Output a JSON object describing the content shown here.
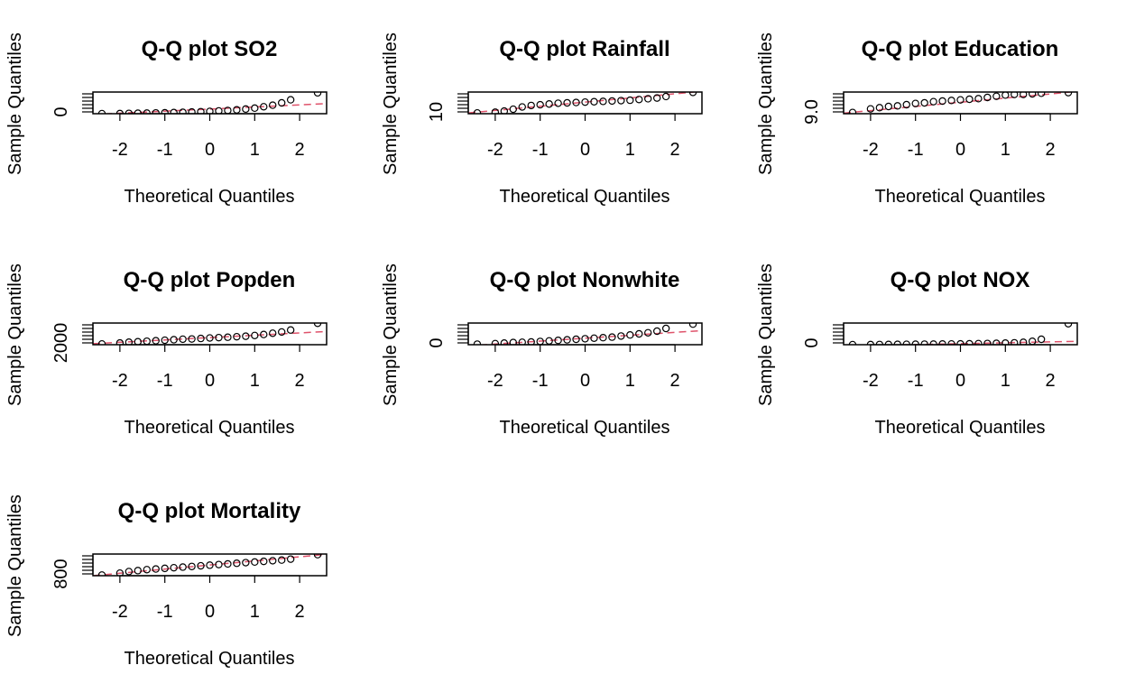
{
  "figure": {
    "background": "#ffffff",
    "point_color": "#000000",
    "line_color": "#df536b"
  },
  "chart_data": [
    {
      "type": "scatter",
      "title": "Q-Q plot SO2",
      "xlabel": "Theoretical Quantiles",
      "ylabel": "Sample Quantiles",
      "xlim": [
        -2.6,
        2.6
      ],
      "ylim": [
        0,
        280
      ],
      "xticks": [
        "-2",
        "-1",
        "0",
        "1",
        "2"
      ],
      "yticks": [
        "0"
      ],
      "x": [
        -2.4,
        -2.0,
        -1.8,
        -1.6,
        -1.4,
        -1.2,
        -1.0,
        -0.8,
        -0.6,
        -0.4,
        -0.2,
        0.0,
        0.2,
        0.4,
        0.6,
        0.8,
        1.0,
        1.2,
        1.4,
        1.6,
        1.8,
        2.4
      ],
      "y": [
        1,
        2,
        4,
        6,
        8,
        10,
        12,
        15,
        18,
        22,
        26,
        30,
        36,
        42,
        50,
        60,
        72,
        90,
        110,
        140,
        180,
        270
      ],
      "line": [
        [
          -2.6,
          -10
        ],
        [
          2.6,
          130
        ]
      ]
    },
    {
      "type": "scatter",
      "title": "Q-Q plot Rainfall",
      "xlabel": "Theoretical Quantiles",
      "ylabel": "Sample Quantiles",
      "xlim": [
        -2.6,
        2.6
      ],
      "ylim": [
        8,
        66
      ],
      "xticks": [
        "-2",
        "-1",
        "0",
        "1",
        "2"
      ],
      "yticks": [
        "10"
      ],
      "x": [
        -2.4,
        -2.0,
        -1.8,
        -1.6,
        -1.4,
        -1.2,
        -1.0,
        -0.8,
        -0.6,
        -0.4,
        -0.2,
        0.0,
        0.2,
        0.4,
        0.6,
        0.8,
        1.0,
        1.2,
        1.4,
        1.6,
        1.8,
        2.4
      ],
      "y": [
        10,
        12,
        15,
        20,
        26,
        30,
        32,
        34,
        36,
        37,
        38,
        39,
        40,
        41,
        42,
        43,
        44,
        46,
        48,
        50,
        54,
        65
      ],
      "line": [
        [
          -2.6,
          10
        ],
        [
          2.6,
          68
        ]
      ]
    },
    {
      "type": "scatter",
      "title": "Q-Q plot Education",
      "xlabel": "Theoretical Quantiles",
      "ylabel": "Sample Quantiles",
      "xlim": [
        -2.6,
        2.6
      ],
      "ylim": [
        8.8,
        12.4
      ],
      "xticks": [
        "-2",
        "-1",
        "0",
        "1",
        "2"
      ],
      "yticks": [
        "9.0"
      ],
      "x": [
        -2.4,
        -2.0,
        -1.8,
        -1.6,
        -1.4,
        -1.2,
        -1.0,
        -0.8,
        -0.6,
        -0.4,
        -0.2,
        0.0,
        0.2,
        0.4,
        0.6,
        0.8,
        1.0,
        1.2,
        1.4,
        1.6,
        1.8,
        2.4
      ],
      "y": [
        9.0,
        9.6,
        9.8,
        10.0,
        10.1,
        10.3,
        10.5,
        10.6,
        10.8,
        10.9,
        11.0,
        11.1,
        11.2,
        11.3,
        11.5,
        11.7,
        11.9,
        12.0,
        12.0,
        12.1,
        12.2,
        12.3
      ],
      "line": [
        [
          -2.6,
          8.9
        ],
        [
          2.6,
          12.5
        ]
      ]
    },
    {
      "type": "scatter",
      "title": "Q-Q plot Popden",
      "xlabel": "Theoretical Quantiles",
      "ylabel": "Sample Quantiles",
      "xlim": [
        -2.6,
        2.6
      ],
      "ylim": [
        1100,
        9800
      ],
      "xticks": [
        "-2",
        "-1",
        "0",
        "1",
        "2"
      ],
      "yticks": [
        "2000"
      ],
      "x": [
        -2.4,
        -2.0,
        -1.8,
        -1.6,
        -1.4,
        -1.2,
        -1.0,
        -0.8,
        -0.6,
        -0.4,
        -0.2,
        0.0,
        0.2,
        0.4,
        0.6,
        0.8,
        1.0,
        1.2,
        1.4,
        1.6,
        1.8,
        2.4
      ],
      "y": [
        1400,
        1800,
        2100,
        2300,
        2500,
        2700,
        2900,
        3100,
        3300,
        3400,
        3600,
        3800,
        3950,
        4100,
        4300,
        4500,
        4800,
        5200,
        5700,
        6200,
        7000,
        9700
      ],
      "line": [
        [
          -2.6,
          1500
        ],
        [
          2.6,
          6400
        ]
      ]
    },
    {
      "type": "scatter",
      "title": "Q-Q plot Nonwhite",
      "xlabel": "Theoretical Quantiles",
      "ylabel": "Sample Quantiles",
      "xlim": [
        -2.6,
        2.6
      ],
      "ylim": [
        0,
        40
      ],
      "xticks": [
        "-2",
        "-1",
        "0",
        "1",
        "2"
      ],
      "yticks": [
        "0"
      ],
      "x": [
        -2.4,
        -2.0,
        -1.8,
        -1.6,
        -1.4,
        -1.2,
        -1.0,
        -0.8,
        -0.6,
        -0.4,
        -0.2,
        0.0,
        0.2,
        0.4,
        0.6,
        0.8,
        1.0,
        1.2,
        1.4,
        1.6,
        1.8,
        2.4
      ],
      "y": [
        1,
        2,
        3,
        4,
        4.5,
        5,
        6,
        7,
        8,
        9,
        10,
        11,
        12,
        13,
        14,
        16,
        18,
        20,
        22,
        25,
        30,
        38
      ],
      "line": [
        [
          -2.6,
          -2
        ],
        [
          2.6,
          26
        ]
      ]
    },
    {
      "type": "scatter",
      "title": "Q-Q plot NOX",
      "xlabel": "Theoretical Quantiles",
      "ylabel": "Sample Quantiles",
      "xlim": [
        -2.6,
        2.6
      ],
      "ylim": [
        0,
        320
      ],
      "xticks": [
        "-2",
        "-1",
        "0",
        "1",
        "2"
      ],
      "yticks": [
        "0"
      ],
      "x": [
        -2.4,
        -2.0,
        -1.8,
        -1.6,
        -1.4,
        -1.2,
        -1.0,
        -0.8,
        -0.6,
        -0.4,
        -0.2,
        0.0,
        0.2,
        0.4,
        0.6,
        0.8,
        1.0,
        1.2,
        1.4,
        1.6,
        1.8,
        2.4
      ],
      "y": [
        1,
        2,
        3,
        4,
        5,
        6,
        7,
        8,
        9,
        10,
        11,
        12,
        14,
        16,
        18,
        20,
        24,
        28,
        35,
        50,
        80,
        310
      ],
      "line": [
        [
          -2.6,
          -20
        ],
        [
          2.6,
          50
        ]
      ]
    },
    {
      "type": "scatter",
      "title": "Q-Q plot Mortality",
      "xlabel": "Theoretical Quantiles",
      "ylabel": "Sample Quantiles",
      "xlim": [
        -2.6,
        2.6
      ],
      "ylim": [
        780,
        1120
      ],
      "xticks": [
        "-2",
        "-1",
        "0",
        "1",
        "2"
      ],
      "yticks": [
        "800"
      ],
      "x": [
        -2.4,
        -2.0,
        -1.8,
        -1.6,
        -1.4,
        -1.2,
        -1.0,
        -0.8,
        -0.6,
        -0.4,
        -0.2,
        0.0,
        0.2,
        0.4,
        0.6,
        0.8,
        1.0,
        1.2,
        1.4,
        1.6,
        1.8,
        2.4
      ],
      "y": [
        790,
        820,
        845,
        860,
        875,
        885,
        895,
        905,
        915,
        925,
        935,
        945,
        955,
        965,
        975,
        985,
        995,
        1005,
        1015,
        1025,
        1040,
        1110
      ],
      "line": [
        [
          -2.6,
          780
        ],
        [
          2.6,
          1115
        ]
      ]
    }
  ]
}
